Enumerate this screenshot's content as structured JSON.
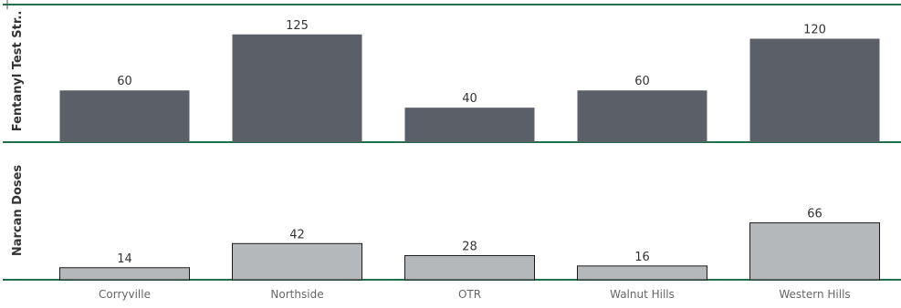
{
  "chart_data": {
    "type": "bar",
    "categories": [
      "Corryville",
      "Northside",
      "OTR",
      "Walnut Hills",
      "Western Hills"
    ],
    "series": [
      {
        "name": "Fentanyl Test Str..",
        "values": [
          60,
          125,
          40,
          60,
          120
        ],
        "color": "#5b5f68"
      },
      {
        "name": "Narcan Doses",
        "values": [
          14,
          42,
          28,
          16,
          66
        ],
        "color": "#b5b8ba"
      }
    ],
    "grid": false,
    "legend": "none"
  },
  "colors": {
    "separator": "#1f6f4d",
    "bar_outline": "#1a1a1a"
  }
}
